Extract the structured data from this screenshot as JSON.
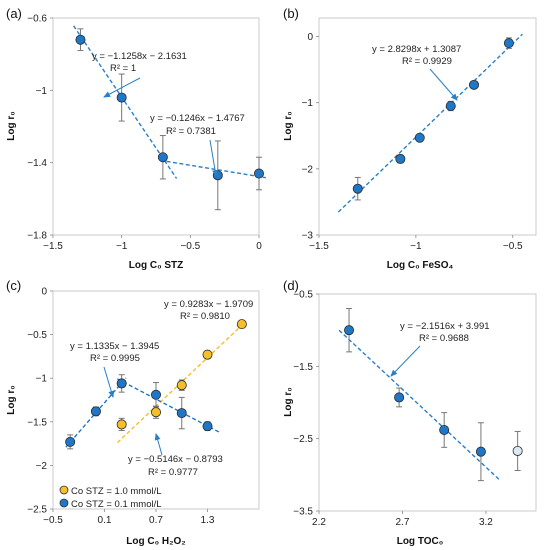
{
  "chart_data": [
    {
      "type": "scatter",
      "panel_label": "(a)",
      "xlabel": "Log C₀ STZ",
      "ylabel": "Log r₀",
      "xlim": [
        -1.5,
        0.0
      ],
      "ylim": [
        -1.8,
        -0.6
      ],
      "xticks": [
        -1.5,
        -1.0,
        -0.5,
        0.0
      ],
      "xtick_labels": [
        "−1.5",
        "−1",
        "−0.5",
        "0"
      ],
      "yticks": [
        -1.8,
        -1.4,
        -1.0,
        -0.6
      ],
      "ytick_labels": [
        "−1.8",
        "−1.4",
        "−1",
        "−0.6"
      ],
      "series": [
        {
          "color": "#1f77c8",
          "x": [
            -1.3,
            -1.0,
            -0.7,
            -0.3,
            0.0
          ],
          "y": [
            -0.72,
            -1.04,
            -1.37,
            -1.47,
            -1.46
          ],
          "err": [
            0.06,
            0.13,
            0.12,
            0.19,
            0.09
          ]
        }
      ],
      "fits": [
        {
          "x0": -1.35,
          "x1": -0.6,
          "slope": -1.1258,
          "intercept": -2.1631,
          "equation": "y = −1.1258x − 2.1631",
          "r2": "R² = 1"
        },
        {
          "x0": -0.72,
          "x1": 0.05,
          "slope": -0.1246,
          "intercept": -1.4767,
          "equation": "y = −0.1246x − 1.4767",
          "r2": "R² = 0.7381"
        }
      ]
    },
    {
      "type": "scatter",
      "panel_label": "(b)",
      "xlabel": "Log C₀ FeSO₄",
      "ylabel": "Log r₀",
      "xlim": [
        -1.5,
        -0.38
      ],
      "ylim": [
        -3,
        0.28
      ],
      "xticks": [
        -1.5,
        -1.0,
        -0.5
      ],
      "xtick_labels": [
        "−1.5",
        "−1",
        "−0.5"
      ],
      "yticks": [
        -3,
        -2,
        -1,
        0
      ],
      "ytick_labels": [
        "−3",
        "−2",
        "−1",
        "0"
      ],
      "series": [
        {
          "color": "#1f77c8",
          "x": [
            -1.3,
            -1.08,
            -0.98,
            -0.82,
            -0.7,
            -0.52
          ],
          "y": [
            -2.3,
            -1.85,
            -1.53,
            -1.05,
            -0.73,
            -0.1
          ],
          "err": [
            0.17,
            0.06,
            0.05,
            0.07,
            0.05,
            0.08
          ]
        }
      ],
      "fits": [
        {
          "x0": -1.4,
          "x1": -0.45,
          "slope": 2.8298,
          "intercept": 1.3087,
          "equation": "y = 2.8298x + 1.3087",
          "r2": "R² = 0.9929"
        }
      ]
    },
    {
      "type": "scatter",
      "panel_label": "(c)",
      "xlabel": "Log C₀ H₂O₂",
      "ylabel": "Log r₀",
      "xlim": [
        -0.5,
        1.9
      ],
      "ylim": [
        -2.5,
        0.0
      ],
      "xticks": [
        -0.5,
        0.1,
        0.7,
        1.3
      ],
      "xtick_labels": [
        "−0.5",
        "0.1",
        "0.7",
        "1.3"
      ],
      "yticks": [
        -2.5,
        -2.0,
        -1.5,
        -1.0,
        -0.5,
        0.0
      ],
      "ytick_labels": [
        "−2.5",
        "−2",
        "−1.5",
        "−1",
        "−0.5",
        "0"
      ],
      "series": [
        {
          "name": "Co STZ = 1.0 mmol/L",
          "color": "#f5bf2c",
          "x": [
            0.3,
            0.7,
            1.0,
            1.3,
            1.7
          ],
          "y": [
            -1.53,
            -1.39,
            -1.08,
            -0.73,
            -0.38
          ],
          "err": [
            0.07,
            0.07,
            0.06,
            0.04,
            0.04
          ]
        },
        {
          "name": "Co STZ = 0.1 mmol/L",
          "color": "#1f77c8",
          "x": [
            -0.3,
            0.0,
            0.3,
            0.7,
            1.0,
            1.3
          ],
          "y": [
            -1.73,
            -1.38,
            -1.06,
            -1.19,
            -1.4,
            -1.55
          ],
          "err": [
            0.08,
            0.05,
            0.1,
            0.14,
            0.18,
            0.05
          ]
        }
      ],
      "fits": [
        {
          "x0": 0.25,
          "x1": 1.75,
          "slope": 0.9283,
          "intercept": -1.9709,
          "equation": "y = 0.9283x − 1.9709",
          "r2": "R² = 0.9810",
          "color": "#f5bf2c"
        },
        {
          "x0": -0.35,
          "x1": 0.35,
          "slope": 1.1335,
          "intercept": -1.3945,
          "equation": "y = 1.1335x − 1.3945",
          "r2": "R² = 0.9995",
          "color": "#1f77c8"
        },
        {
          "x0": 0.25,
          "x1": 1.45,
          "slope": -0.5146,
          "intercept": -0.8793,
          "equation": "y = −0.5146x − 0.8793",
          "r2": "R² = 0.9777",
          "color": "#1f77c8"
        }
      ],
      "legend": [
        "Co STZ = 1.0 mmol/L",
        "Co STZ = 0.1 mmol/L"
      ]
    },
    {
      "type": "scatter",
      "panel_label": "(d)",
      "xlabel": "Log TOC₀",
      "ylabel": "Log r₀",
      "xlim": [
        2.2,
        3.5
      ],
      "ylim": [
        -3.5,
        -0.5
      ],
      "xticks": [
        2.2,
        2.7,
        3.2
      ],
      "xtick_labels": [
        "2.2",
        "2.7",
        "3.2"
      ],
      "yticks": [
        -3.5,
        -2.5,
        -1.5,
        -0.5
      ],
      "ytick_labels": [
        "−3.5",
        "−2.5",
        "−1.5",
        "−0.5"
      ],
      "series": [
        {
          "color": "#1f77c8",
          "x": [
            2.38,
            2.68,
            2.95,
            3.17
          ],
          "y": [
            -1.0,
            -1.93,
            -2.38,
            -2.68
          ],
          "err": [
            0.3,
            0.13,
            0.24,
            0.4
          ]
        },
        {
          "color": "#dce8f3",
          "x": [
            3.39
          ],
          "y": [
            -2.67
          ],
          "err": [
            0.27
          ]
        }
      ],
      "fits": [
        {
          "x0": 2.32,
          "x1": 3.28,
          "slope": -2.1516,
          "intercept": 3.991,
          "equation": "y = −2.1516x + 3.991",
          "r2": "R² = 0.9688"
        }
      ]
    }
  ]
}
